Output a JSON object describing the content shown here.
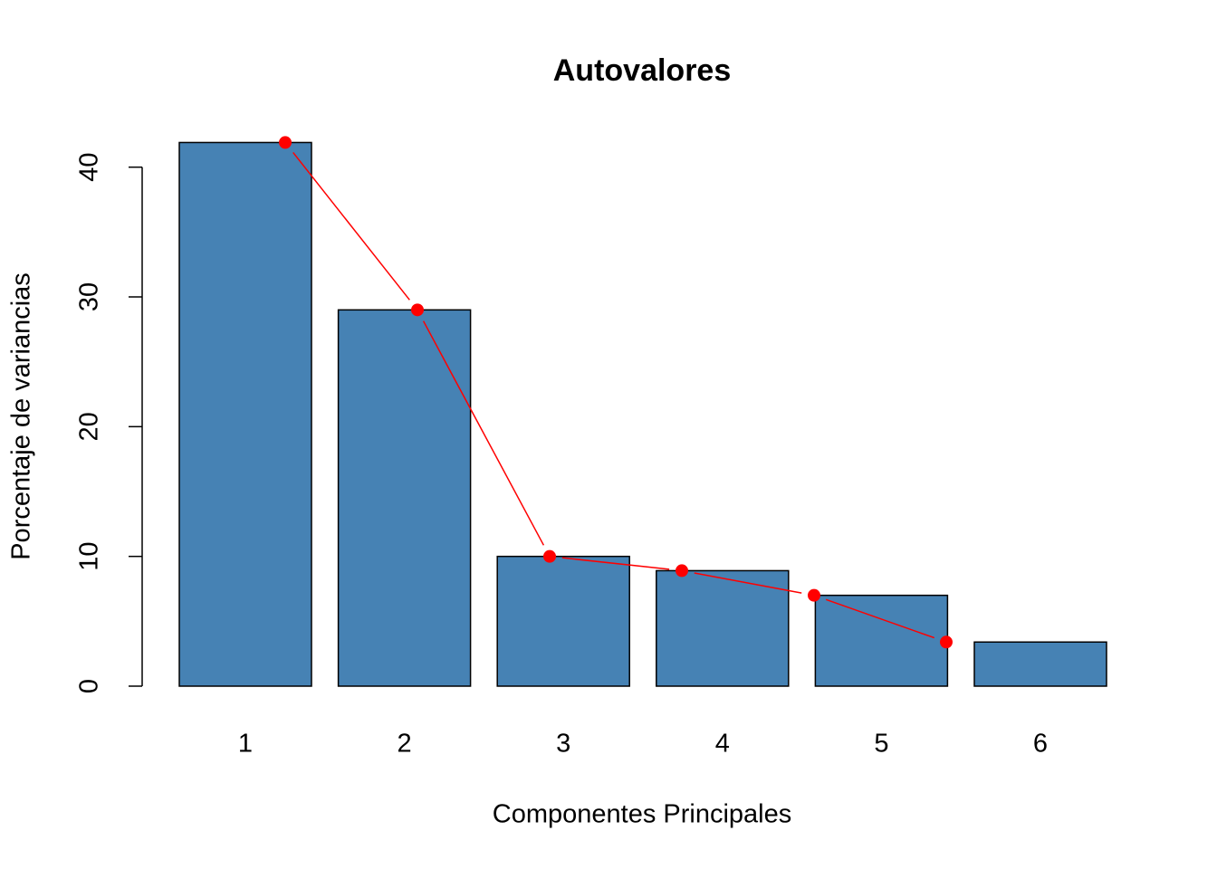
{
  "chart_data": {
    "type": "bar",
    "title": "Autovalores",
    "x_label": "Componentes Principales",
    "y_label": "Porcentaje de variancias",
    "categories": [
      "1",
      "2",
      "3",
      "4",
      "5",
      "6"
    ],
    "values": [
      41.9,
      29.0,
      10.0,
      8.9,
      7.0,
      3.4
    ],
    "color": "#4682b4",
    "line_color": "#ff0000",
    "ylim": [
      0,
      42
    ],
    "yticks": [
      0,
      10,
      20,
      30,
      40
    ],
    "grid": false
  }
}
